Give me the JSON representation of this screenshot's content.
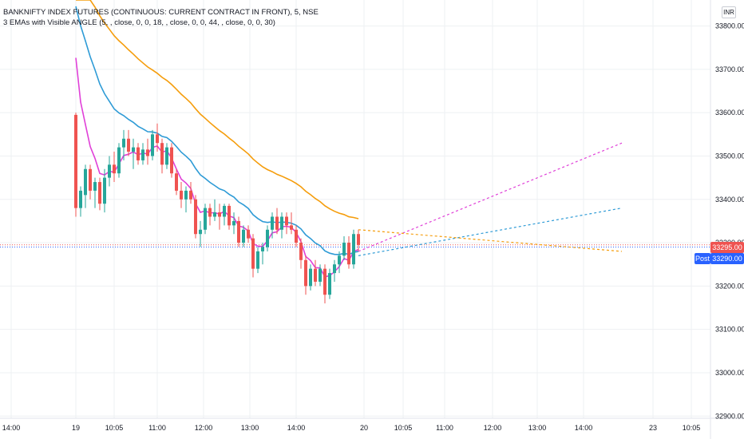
{
  "header": {
    "symbol_line": "BANKNIFTY INDEX FUTURES (CONTINUOUS: CURRENT CONTRACT IN FRONT), 5, NSE",
    "indicator_line": "3 EMAs with Visible ANGLE (5, , close, 0, 0, 18, , close, 0, 0, 44, , close, 0, 0, 30)",
    "currency": "INR"
  },
  "price_tags": {
    "last": "33295.00",
    "post_label": "Post",
    "post_price": "33290.00"
  },
  "colors": {
    "up": "#26a69a",
    "down": "#ef5350",
    "ema_fast": "#e040d8",
    "ema_mid": "#2e9bd6",
    "ema_slow": "#f59d0c",
    "grid": "#eef0f3",
    "axis_text": "#131722",
    "post_tag": "#2962ff"
  },
  "chart_data": {
    "type": "candlestick",
    "y_axis": {
      "ticks": [
        32900,
        33000,
        33100,
        33200,
        33300,
        33400,
        33500,
        33600,
        33700,
        33800
      ],
      "tick_labels": [
        "32900.00",
        "33000.00",
        "33100.00",
        "33200.00",
        "33300.00",
        "33400.00",
        "33500.00",
        "33600.00",
        "33700.00",
        "33800.00"
      ],
      "ylim": [
        32895,
        33860
      ]
    },
    "x_axis": {
      "tick_labels": [
        "14:00",
        "19",
        "10:05",
        "11:00",
        "12:00",
        "13:00",
        "14:00",
        "20",
        "10:05",
        "11:00",
        "12:00",
        "13:00",
        "14:00",
        "23",
        "10:05"
      ]
    },
    "grid": true,
    "session_start_index": 6,
    "candles": [
      [
        33595,
        33600,
        33360,
        33380
      ],
      [
        33380,
        33430,
        33360,
        33420
      ],
      [
        33410,
        33480,
        33380,
        33470
      ],
      [
        33470,
        33480,
        33400,
        33420
      ],
      [
        33420,
        33450,
        33380,
        33440
      ],
      [
        33440,
        33450,
        33375,
        33390
      ],
      [
        33390,
        33470,
        33370,
        33450
      ],
      [
        33450,
        33500,
        33430,
        33480
      ],
      [
        33480,
        33510,
        33440,
        33460
      ],
      [
        33460,
        33530,
        33450,
        33520
      ],
      [
        33520,
        33560,
        33490,
        33540
      ],
      [
        33540,
        33560,
        33500,
        33510
      ],
      [
        33510,
        33540,
        33470,
        33520
      ],
      [
        33520,
        33530,
        33480,
        33490
      ],
      [
        33490,
        33530,
        33480,
        33515
      ],
      [
        33515,
        33540,
        33480,
        33500
      ],
      [
        33500,
        33560,
        33490,
        33550
      ],
      [
        33550,
        33575,
        33510,
        33530
      ],
      [
        33530,
        33540,
        33460,
        33480
      ],
      [
        33480,
        33530,
        33470,
        33520
      ],
      [
        33520,
        33530,
        33450,
        33460
      ],
      [
        33460,
        33470,
        33410,
        33420
      ],
      [
        33420,
        33440,
        33380,
        33400
      ],
      [
        33400,
        33430,
        33370,
        33420
      ],
      [
        33420,
        33440,
        33390,
        33400
      ],
      [
        33400,
        33410,
        33310,
        33320
      ],
      [
        33320,
        33350,
        33290,
        33330
      ],
      [
        33330,
        33390,
        33320,
        33380
      ],
      [
        33380,
        33390,
        33340,
        33360
      ],
      [
        33360,
        33400,
        33350,
        33370
      ],
      [
        33370,
        33390,
        33330,
        33360
      ],
      [
        33360,
        33390,
        33340,
        33385
      ],
      [
        33385,
        33390,
        33330,
        33340
      ],
      [
        33340,
        33370,
        33320,
        33350
      ],
      [
        33350,
        33360,
        33290,
        33300
      ],
      [
        33300,
        33340,
        33290,
        33330
      ],
      [
        33330,
        33340,
        33300,
        33310
      ],
      [
        33310,
        33320,
        33220,
        33240
      ],
      [
        33240,
        33290,
        33230,
        33280
      ],
      [
        33280,
        33300,
        33250,
        33290
      ],
      [
        33290,
        33340,
        33280,
        33330
      ],
      [
        33330,
        33370,
        33310,
        33360
      ],
      [
        33360,
        33380,
        33320,
        33330
      ],
      [
        33330,
        33370,
        33310,
        33360
      ],
      [
        33360,
        33370,
        33320,
        33340
      ],
      [
        33340,
        33370,
        33320,
        33330
      ],
      [
        33330,
        33340,
        33290,
        33300
      ],
      [
        33300,
        33310,
        33240,
        33260
      ],
      [
        33260,
        33270,
        33180,
        33200
      ],
      [
        33200,
        33250,
        33190,
        33240
      ],
      [
        33240,
        33260,
        33200,
        33210
      ],
      [
        33210,
        33250,
        33200,
        33240
      ],
      [
        33240,
        33250,
        33160,
        33180
      ],
      [
        33180,
        33240,
        33170,
        33230
      ],
      [
        33230,
        33260,
        33210,
        33250
      ],
      [
        33250,
        33280,
        33230,
        33270
      ],
      [
        33270,
        33315,
        33260,
        33300
      ],
      [
        33300,
        33315,
        33240,
        33250
      ],
      [
        33250,
        33330,
        33240,
        33320
      ],
      [
        33320,
        33330,
        33280,
        33295
      ]
    ],
    "ema_projections": [
      {
        "name": "EMA 5",
        "color": "#e040d8",
        "from": [
          59,
          33280
        ],
        "to": [
          114,
          33530
        ]
      },
      {
        "name": "EMA 18",
        "color": "#2e9bd6",
        "from": [
          59,
          33270
        ],
        "to": [
          114,
          33380
        ]
      },
      {
        "name": "EMA 44",
        "color": "#f59d0c",
        "from": [
          59,
          33330
        ],
        "to": [
          114,
          33280
        ]
      }
    ]
  }
}
